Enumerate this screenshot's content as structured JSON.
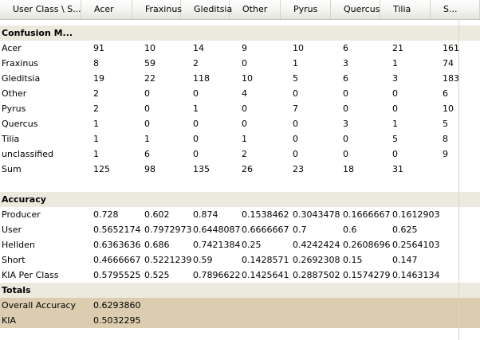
{
  "headers": [
    "User Class \\ S...",
    "Acer",
    "Fraxinus",
    "Gleditsia",
    "Other",
    "Pyrus",
    "Quercus",
    "Tilia",
    "S..."
  ],
  "confusion": {
    "title": "Confusion M...",
    "rows": [
      [
        "Acer",
        "91",
        "10",
        "14",
        "9",
        "10",
        "6",
        "21",
        "161"
      ],
      [
        "Fraxinus",
        "8",
        "59",
        "2",
        "0",
        "1",
        "3",
        "1",
        "74"
      ],
      [
        "Gleditsia",
        "19",
        "22",
        "118",
        "10",
        "5",
        "6",
        "3",
        "183"
      ],
      [
        "Other",
        "2",
        "0",
        "0",
        "4",
        "0",
        "0",
        "0",
        "6"
      ],
      [
        "Pyrus",
        "2",
        "0",
        "1",
        "0",
        "7",
        "0",
        "0",
        "10"
      ],
      [
        "Quercus",
        "1",
        "0",
        "0",
        "0",
        "0",
        "3",
        "1",
        "5"
      ],
      [
        "Tilia",
        "1",
        "1",
        "0",
        "1",
        "0",
        "0",
        "5",
        "8"
      ],
      [
        "unclassified",
        "1",
        "6",
        "0",
        "2",
        "0",
        "0",
        "0",
        "9"
      ],
      [
        "Sum",
        "125",
        "98",
        "135",
        "26",
        "23",
        "18",
        "31",
        ""
      ]
    ]
  },
  "accuracy": {
    "title": "Accuracy",
    "rows": [
      [
        "Producer",
        "0.728",
        "0.602",
        "0.874",
        "0.1538462",
        "0.3043478",
        "0.1666667",
        "0.1612903",
        ""
      ],
      [
        "User",
        "0.5652174",
        "0.7972973",
        "0.6448087",
        "0.6666667",
        "0.7",
        "0.6",
        "0.625",
        ""
      ],
      [
        "Hellden",
        "0.6363636",
        "0.686",
        "0.7421384",
        "0.25",
        "0.4242424",
        "0.2608696",
        "0.2564103",
        ""
      ],
      [
        "Short",
        "0.4666667",
        "0.5221239",
        "0.59",
        "0.1428571",
        "0.2692308",
        "0.15",
        "0.147",
        ""
      ],
      [
        "KIA Per Class",
        "0.5795525",
        "0.525",
        "0.7896622",
        "0.1425641",
        "0.2887502",
        "0.1574279",
        "0.1463134",
        ""
      ]
    ]
  },
  "totals": {
    "title": "Totals",
    "rows": [
      [
        "Overall Accuracy",
        "0.6293860"
      ],
      [
        "KIA",
        "0.5032295"
      ]
    ]
  },
  "colors": {
    "section_band": "#eceade",
    "totals_band": "#dccdb0"
  }
}
